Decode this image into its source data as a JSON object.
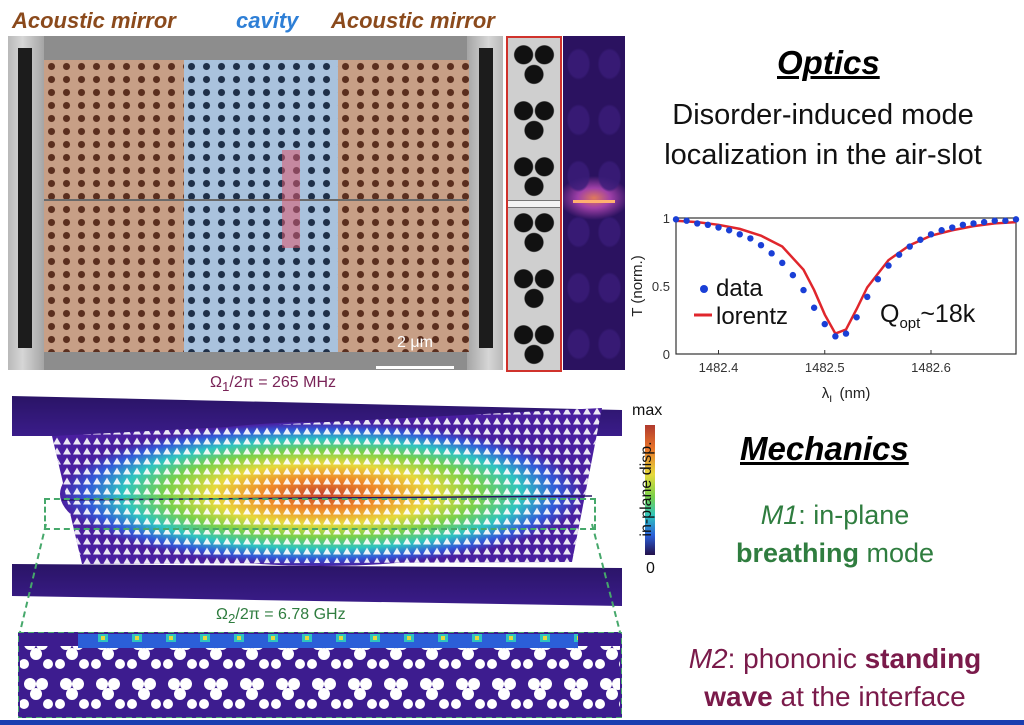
{
  "sem": {
    "label_left": "Acoustic mirror",
    "label_center": "cavity",
    "label_right": "Acoustic mirror",
    "scale_bar": "2 μm",
    "colors": {
      "mirror": "#8b4a1c",
      "cavity": "#2e7fd6"
    }
  },
  "optics": {
    "title": "Optics",
    "description_line1": "Disorder-induced mode",
    "description_line2": "localization in the air-slot"
  },
  "chart_data": {
    "type": "line",
    "xlabel": "λ",
    "xlabel_sub": "L",
    "xlabel_unit": " (nm)",
    "ylabel": "T (norm.)",
    "xlim": [
      1482.36,
      1482.68
    ],
    "ylim": [
      0,
      1
    ],
    "xticks": [
      "1482.4",
      "1482.5",
      "1482.6"
    ],
    "yticks": [
      "0",
      "0.5",
      "1"
    ],
    "annotation_main": "Q",
    "annotation_sub": "opt",
    "annotation_tail": "~18k",
    "legend": [
      "data",
      "lorentz"
    ],
    "series": [
      {
        "name": "data",
        "style": "dots",
        "color": "#1a3fd6",
        "x": [
          1482.36,
          1482.37,
          1482.38,
          1482.39,
          1482.4,
          1482.41,
          1482.42,
          1482.43,
          1482.44,
          1482.45,
          1482.46,
          1482.47,
          1482.48,
          1482.49,
          1482.5,
          1482.51,
          1482.52,
          1482.53,
          1482.54,
          1482.55,
          1482.56,
          1482.57,
          1482.58,
          1482.59,
          1482.6,
          1482.61,
          1482.62,
          1482.63,
          1482.64,
          1482.65,
          1482.66,
          1482.67,
          1482.68
        ],
        "y": [
          0.99,
          0.98,
          0.96,
          0.95,
          0.93,
          0.91,
          0.88,
          0.85,
          0.8,
          0.74,
          0.67,
          0.58,
          0.47,
          0.34,
          0.22,
          0.13,
          0.15,
          0.27,
          0.42,
          0.55,
          0.65,
          0.73,
          0.79,
          0.84,
          0.88,
          0.91,
          0.93,
          0.95,
          0.96,
          0.97,
          0.98,
          0.98,
          0.99
        ]
      },
      {
        "name": "lorentz",
        "style": "line",
        "color": "#e0262c",
        "x": [
          1482.36,
          1482.38,
          1482.4,
          1482.42,
          1482.44,
          1482.46,
          1482.48,
          1482.49,
          1482.5,
          1482.51,
          1482.52,
          1482.53,
          1482.54,
          1482.56,
          1482.58,
          1482.6,
          1482.62,
          1482.64,
          1482.66,
          1482.68
        ],
        "y": [
          0.98,
          0.97,
          0.95,
          0.92,
          0.87,
          0.79,
          0.62,
          0.47,
          0.29,
          0.15,
          0.18,
          0.33,
          0.49,
          0.69,
          0.8,
          0.87,
          0.91,
          0.94,
          0.96,
          0.97
        ]
      }
    ]
  },
  "mechanics": {
    "title": "Mechanics",
    "omega1_a": "Ω",
    "omega1_sub": "1",
    "omega1_b": "/2π = 265 MHz",
    "omega2_a": "Ω",
    "omega2_sub": "2",
    "omega2_b": "/2π = 6.78 GHz",
    "colorbar_max": "max",
    "colorbar_min": "0",
    "colorbar_label": "in-plane disp.",
    "m1_name": "M1",
    "m1_text_a": ": in-plane",
    "m1_bold": "breathing",
    "m1_text_b": " mode",
    "m2_name": "M2",
    "m2_text_a": ": phononic ",
    "m2_bold_a": "standing",
    "m2_bold_b": "wave",
    "m2_text_b": " at the interface"
  }
}
